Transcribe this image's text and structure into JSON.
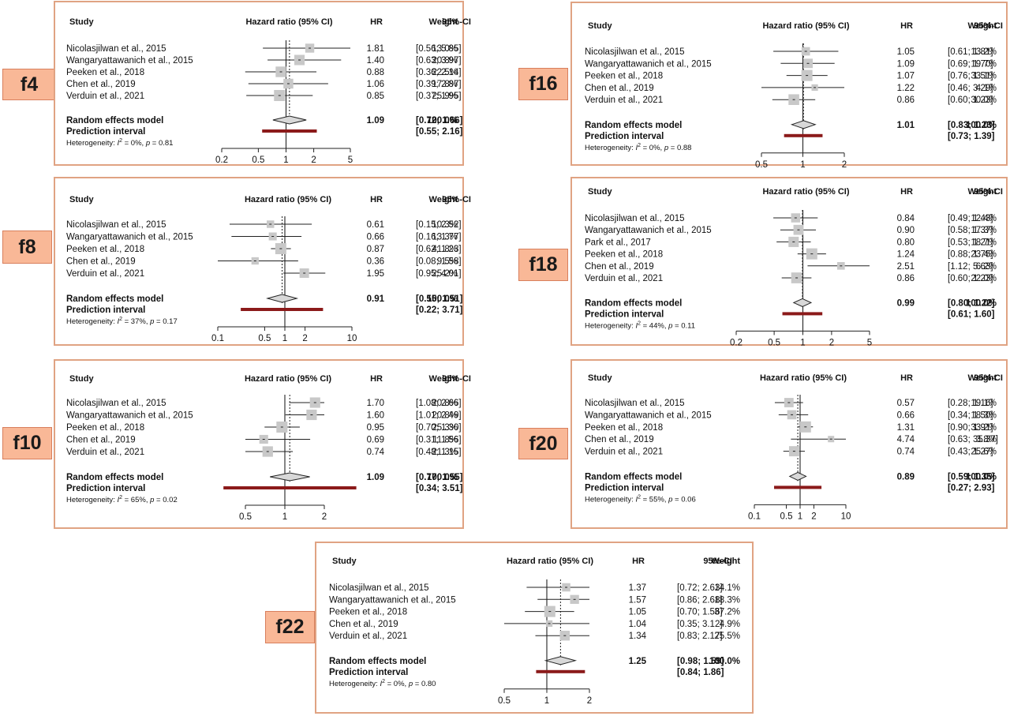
{
  "header": {
    "study": "Study",
    "hr_ci": "Hazard ratio (95% CI)",
    "hr": "HR",
    "ci": "95%-CI",
    "weight": "Weight"
  },
  "labels": {
    "random": "Random effects model",
    "prediction": "Prediction interval"
  },
  "colors": {
    "panel_border": "#e0a383",
    "tag_fill": "#f9b897",
    "box": "#c8c8c8",
    "prediction_bar": "#8b1a1a"
  },
  "chart_data": [
    {
      "id": "f4",
      "type": "forest",
      "scale": "log",
      "xlim": [
        0.2,
        5
      ],
      "ticks": [
        0.2,
        0.5,
        1,
        2,
        5
      ],
      "tick_labels": [
        "0.2",
        "0.5",
        "1",
        "2",
        "5"
      ],
      "studies": [
        {
          "name": "Nicolasjilwan et al., 2015",
          "hr": 1.81,
          "lo": 0.56,
          "hi": 5.85,
          "hr_text": "1.81",
          "ci_text": "[0.56; 5.85]",
          "weight": "13.0%",
          "w": 13.0
        },
        {
          "name": "Wangaryattawanich et al., 2015",
          "hr": 1.4,
          "lo": 0.63,
          "hi": 3.97,
          "hr_text": "1.40",
          "ci_text": "[0.63; 3.97]",
          "weight": "20.8%",
          "w": 20.8
        },
        {
          "name": "Peeken et al., 2018",
          "hr": 0.88,
          "lo": 0.36,
          "hi": 2.14,
          "hr_text": "0.88",
          "ci_text": "[0.36; 2.14]",
          "weight": "22.5%",
          "w": 22.5
        },
        {
          "name": "Chen et al., 2019",
          "hr": 1.06,
          "lo": 0.39,
          "hi": 2.87,
          "hr_text": "1.06",
          "ci_text": "[0.39; 2.87]",
          "weight": "17.8%",
          "w": 17.8
        },
        {
          "name": "Verduin et al., 2021",
          "hr": 0.85,
          "lo": 0.37,
          "hi": 1.95,
          "hr_text": "0.85",
          "ci_text": "[0.37; 1.95]",
          "weight": "25.9%",
          "w": 25.9
        }
      ],
      "pooled": {
        "hr": 1.09,
        "lo": 0.72,
        "hi": 1.66,
        "hr_text": "1.09",
        "ci_text": "[0.72; 1.66]",
        "weight": "100.0%"
      },
      "prediction": {
        "lo": 0.55,
        "hi": 2.16,
        "ci_text": "[0.55; 2.16]"
      },
      "heterogeneity": {
        "i2": "0%",
        "p": "0.81"
      }
    },
    {
      "id": "f16",
      "type": "forest",
      "scale": "log",
      "xlim": [
        0.5,
        2
      ],
      "ticks": [
        0.5,
        1,
        2
      ],
      "tick_labels": [
        "0.5",
        "1",
        "2"
      ],
      "studies": [
        {
          "name": "Nicolasjilwan et al., 2015",
          "hr": 1.05,
          "lo": 0.61,
          "hi": 1.81,
          "hr_text": "1.05",
          "ci_text": "[0.61; 1.81]",
          "weight": "13.2%",
          "w": 13.2
        },
        {
          "name": "Wangaryattawanich et al., 2015",
          "hr": 1.09,
          "lo": 0.69,
          "hi": 1.7,
          "hr_text": "1.09",
          "ci_text": "[0.69; 1.70]",
          "weight": "19.7%",
          "w": 19.7
        },
        {
          "name": "Peeken et al., 2018",
          "hr": 1.07,
          "lo": 0.76,
          "hi": 1.51,
          "hr_text": "1.07",
          "ci_text": "[0.76; 1.51]",
          "weight": "33.1%",
          "w": 33.1
        },
        {
          "name": "Chen et al., 2019",
          "hr": 1.22,
          "lo": 0.46,
          "hi": 3.29,
          "hr_text": "1.22",
          "ci_text": "[0.46; 3.29]",
          "weight": "4.1%",
          "w": 4.1
        },
        {
          "name": "Verduin et al., 2021",
          "hr": 0.86,
          "lo": 0.6,
          "hi": 1.23,
          "hr_text": "0.86",
          "ci_text": "[0.60; 1.23]",
          "weight": "30.0%",
          "w": 30.0
        }
      ],
      "pooled": {
        "hr": 1.01,
        "lo": 0.83,
        "hi": 1.23,
        "hr_text": "1.01",
        "ci_text": "[0.83; 1.23]",
        "weight": "100.0%"
      },
      "prediction": {
        "lo": 0.73,
        "hi": 1.39,
        "ci_text": "[0.73; 1.39]"
      },
      "heterogeneity": {
        "i2": "0%",
        "p": "0.88"
      }
    },
    {
      "id": "f8",
      "type": "forest",
      "scale": "log",
      "xlim": [
        0.1,
        10
      ],
      "ticks": [
        0.1,
        0.5,
        1,
        2,
        10
      ],
      "tick_labels": [
        "0.1",
        "0.5",
        "1",
        "2",
        "10"
      ],
      "studies": [
        {
          "name": "Nicolasjilwan et al., 2015",
          "hr": 0.61,
          "lo": 0.15,
          "hi": 2.52,
          "hr_text": "0.61",
          "ci_text": "[0.15; 2.52]",
          "weight": "10.3%",
          "w": 10.3
        },
        {
          "name": "Wangaryattawanich et al., 2015",
          "hr": 0.66,
          "lo": 0.16,
          "hi": 1.77,
          "hr_text": "0.66",
          "ci_text": "[0.16; 1.77]",
          "weight": "13.3%",
          "w": 13.3
        },
        {
          "name": "Peeken et al., 2018",
          "hr": 0.87,
          "lo": 0.62,
          "hi": 1.23,
          "hr_text": "0.87",
          "ci_text": "[0.62; 1.23]",
          "weight": "41.8%",
          "w": 41.8
        },
        {
          "name": "Chen et al., 2019",
          "hr": 0.36,
          "lo": 0.08,
          "hi": 1.58,
          "hr_text": "0.36",
          "ci_text": "[0.08; 1.58]",
          "weight": "9.5%",
          "w": 9.5
        },
        {
          "name": "Verduin et al., 2021",
          "hr": 1.95,
          "lo": 0.95,
          "hi": 4.01,
          "hr_text": "1.95",
          "ci_text": "[0.95; 4.01]",
          "weight": "25.2%",
          "w": 25.2
        }
      ],
      "pooled": {
        "hr": 0.91,
        "lo": 0.55,
        "hi": 1.51,
        "hr_text": "0.91",
        "ci_text": "[0.55; 1.51]",
        "weight": "100.0%"
      },
      "prediction": {
        "lo": 0.22,
        "hi": 3.71,
        "ci_text": "[0.22; 3.71]"
      },
      "heterogeneity": {
        "i2": "37%",
        "p": "0.17"
      }
    },
    {
      "id": "f18",
      "type": "forest",
      "scale": "log",
      "xlim": [
        0.2,
        5
      ],
      "ticks": [
        0.2,
        0.5,
        1,
        2,
        5
      ],
      "tick_labels": [
        "0.2",
        "0.5",
        "1",
        "2",
        "5"
      ],
      "studies": [
        {
          "name": "Nicolasjilwan et al., 2015",
          "hr": 0.84,
          "lo": 0.49,
          "hi": 1.43,
          "hr_text": "0.84",
          "ci_text": "[0.49; 1.43]",
          "weight": "12.4%",
          "w": 12.4
        },
        {
          "name": "Wangaryattawanich et al., 2015",
          "hr": 0.9,
          "lo": 0.58,
          "hi": 1.37,
          "hr_text": "0.90",
          "ci_text": "[0.58; 1.37]",
          "weight": "17.3%",
          "w": 17.3
        },
        {
          "name": "Park et al., 2017",
          "hr": 0.8,
          "lo": 0.53,
          "hi": 1.21,
          "hr_text": "0.80",
          "ci_text": "[0.53; 1.21]",
          "weight": "18.7%",
          "w": 18.7
        },
        {
          "name": "Peeken et al., 2018",
          "hr": 1.24,
          "lo": 0.88,
          "hi": 1.75,
          "hr_text": "1.24",
          "ci_text": "[0.88; 1.75]",
          "weight": "23.4%",
          "w": 23.4
        },
        {
          "name": "Chen et al., 2019",
          "hr": 2.51,
          "lo": 1.12,
          "hi": 5.63,
          "hr_text": "2.51",
          "ci_text": "[1.12; 5.63]",
          "weight": "6.2%",
          "w": 6.2
        },
        {
          "name": "Verduin et al., 2021",
          "hr": 0.86,
          "lo": 0.6,
          "hi": 1.23,
          "hr_text": "0.86",
          "ci_text": "[0.60; 1.23]",
          "weight": "22.0%",
          "w": 22.0
        }
      ],
      "pooled": {
        "hr": 0.99,
        "lo": 0.8,
        "hi": 1.22,
        "hr_text": "0.99",
        "ci_text": "[0.80; 1.22]",
        "weight": "100.0%"
      },
      "prediction": {
        "lo": 0.61,
        "hi": 1.6,
        "ci_text": "[0.61; 1.60]"
      },
      "heterogeneity": {
        "i2": "44%",
        "p": "0.11"
      }
    },
    {
      "id": "f10",
      "type": "forest",
      "scale": "log",
      "xlim": [
        0.5,
        2
      ],
      "ticks": [
        0.5,
        1,
        2
      ],
      "tick_labels": [
        "0.5",
        "1",
        "2"
      ],
      "studies": [
        {
          "name": "Nicolasjilwan et al., 2015",
          "hr": 1.7,
          "lo": 1.08,
          "hi": 2.66,
          "hr_text": "1.70",
          "ci_text": "[1.08; 2.66]",
          "weight": "20.8%",
          "w": 20.8
        },
        {
          "name": "Wangaryattawanich et al., 2015",
          "hr": 1.6,
          "lo": 1.01,
          "hi": 2.49,
          "hr_text": "1.60",
          "ci_text": "[1.01; 2.49]",
          "weight": "20.8%",
          "w": 20.8
        },
        {
          "name": "Peeken et al., 2018",
          "hr": 0.95,
          "lo": 0.7,
          "hi": 1.3,
          "hr_text": "0.95",
          "ci_text": "[0.70; 1.30]",
          "weight": "25.3%",
          "w": 25.3
        },
        {
          "name": "Chen et al., 2019",
          "hr": 0.69,
          "lo": 0.31,
          "hi": 1.56,
          "hr_text": "0.69",
          "ci_text": "[0.31; 1.56]",
          "weight": "11.8%",
          "w": 11.8
        },
        {
          "name": "Verduin et al., 2021",
          "hr": 0.74,
          "lo": 0.48,
          "hi": 1.15,
          "hr_text": "0.74",
          "ci_text": "[0.48; 1.15]",
          "weight": "21.3%",
          "w": 21.3
        }
      ],
      "pooled": {
        "hr": 1.09,
        "lo": 0.77,
        "hi": 1.55,
        "hr_text": "1.09",
        "ci_text": "[0.77; 1.55]",
        "weight": "100.0%"
      },
      "prediction": {
        "lo": 0.34,
        "hi": 3.51,
        "ci_text": "[0.34; 3.51]"
      },
      "heterogeneity": {
        "i2": "65%",
        "p": "0.02"
      }
    },
    {
      "id": "f20",
      "type": "forest",
      "scale": "log",
      "xlim": [
        0.1,
        10
      ],
      "ticks": [
        0.1,
        0.5,
        1,
        2,
        10
      ],
      "tick_labels": [
        "0.1",
        "0.5",
        "1",
        "2",
        "10"
      ],
      "studies": [
        {
          "name": "Nicolasjilwan et al., 2015",
          "hr": 0.57,
          "lo": 0.28,
          "hi": 1.16,
          "hr_text": "0.57",
          "ci_text": "[0.28; 1.16]",
          "weight": "19.1%",
          "w": 19.1
        },
        {
          "name": "Wangaryattawanich et al., 2015",
          "hr": 0.66,
          "lo": 0.34,
          "hi": 1.5,
          "hr_text": "0.66",
          "ci_text": "[0.34; 1.50]",
          "weight": "18.3%",
          "w": 18.3
        },
        {
          "name": "Peeken et al., 2018",
          "hr": 1.31,
          "lo": 0.9,
          "hi": 1.91,
          "hr_text": "1.31",
          "ci_text": "[0.90; 1.91]",
          "weight": "33.2%",
          "w": 33.2
        },
        {
          "name": "Chen et al., 2019",
          "hr": 4.74,
          "lo": 0.63,
          "hi": 35.37,
          "hr_text": "4.74",
          "ci_text": "[0.63; 35.37]",
          "weight": "3.8%",
          "w": 3.8
        },
        {
          "name": "Verduin et al., 2021",
          "hr": 0.74,
          "lo": 0.43,
          "hi": 1.27,
          "hr_text": "0.74",
          "ci_text": "[0.43; 1.27]",
          "weight": "25.6%",
          "w": 25.6
        }
      ],
      "pooled": {
        "hr": 0.89,
        "lo": 0.59,
        "hi": 1.35,
        "hr_text": "0.89",
        "ci_text": "[0.59; 1.35]",
        "weight": "100.0%"
      },
      "prediction": {
        "lo": 0.27,
        "hi": 2.93,
        "ci_text": "[0.27; 2.93]"
      },
      "heterogeneity": {
        "i2": "55%",
        "p": "0.06"
      }
    },
    {
      "id": "f22",
      "type": "forest",
      "scale": "log",
      "xlim": [
        0.5,
        2
      ],
      "ticks": [
        0.5,
        1,
        2
      ],
      "tick_labels": [
        "0.5",
        "1",
        "2"
      ],
      "studies": [
        {
          "name": "Nicolasjilwan et al., 2015",
          "hr": 1.37,
          "lo": 0.72,
          "hi": 2.63,
          "hr_text": "1.37",
          "ci_text": "[0.72; 2.63]",
          "weight": "14.1%",
          "w": 14.1
        },
        {
          "name": "Wangaryattawanich et al., 2015",
          "hr": 1.57,
          "lo": 0.86,
          "hi": 2.68,
          "hr_text": "1.57",
          "ci_text": "[0.86; 2.68]",
          "weight": "18.3%",
          "w": 18.3
        },
        {
          "name": "Peeken et al., 2018",
          "hr": 1.05,
          "lo": 0.7,
          "hi": 1.56,
          "hr_text": "1.05",
          "ci_text": "[0.70; 1.56]",
          "weight": "37.2%",
          "w": 37.2
        },
        {
          "name": "Chen et al., 2019",
          "hr": 1.04,
          "lo": 0.35,
          "hi": 3.12,
          "hr_text": "1.04",
          "ci_text": "[0.35; 3.12]",
          "weight": "4.9%",
          "w": 4.9
        },
        {
          "name": "Verduin et al., 2021",
          "hr": 1.34,
          "lo": 0.83,
          "hi": 2.17,
          "hr_text": "1.34",
          "ci_text": "[0.83; 2.17]",
          "weight": "25.5%",
          "w": 25.5
        }
      ],
      "pooled": {
        "hr": 1.25,
        "lo": 0.98,
        "hi": 1.59,
        "hr_text": "1.25",
        "ci_text": "[0.98; 1.59]",
        "weight": "100.0%"
      },
      "prediction": {
        "lo": 0.84,
        "hi": 1.86,
        "ci_text": "[0.84; 1.86]"
      },
      "heterogeneity": {
        "i2": "0%",
        "p": "0.80"
      }
    }
  ]
}
